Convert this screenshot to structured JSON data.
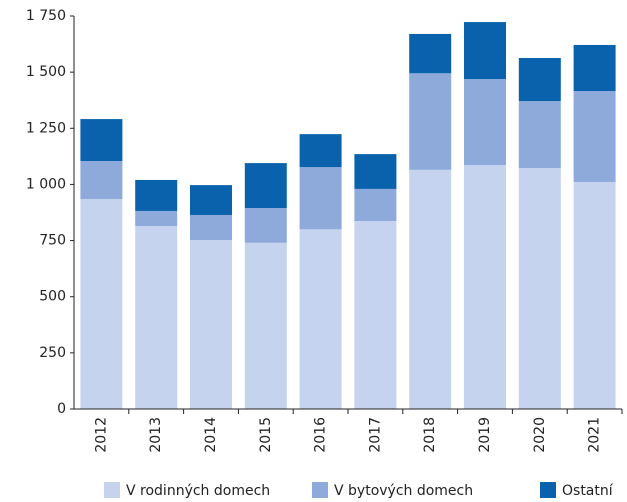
{
  "chart_data": {
    "type": "stacked_bar",
    "categories": [
      "2012",
      "2013",
      "2014",
      "2015",
      "2016",
      "2017",
      "2018",
      "2019",
      "2020",
      "2021"
    ],
    "series": [
      {
        "name": "V rodinných domech",
        "color": "#c5d3ee",
        "values": [
          935,
          815,
          752,
          740,
          800,
          837,
          1065,
          1086,
          1073,
          1011
        ]
      },
      {
        "name": "V bytových domech",
        "color": "#8eaadb",
        "values": [
          169,
          67,
          112,
          155,
          277,
          143,
          430,
          383,
          298,
          405
        ]
      },
      {
        "name": "Ostatní",
        "color": "#0a62ad",
        "values": [
          187,
          138,
          133,
          200,
          147,
          155,
          175,
          254,
          192,
          205
        ]
      }
    ],
    "ylim": [
      0,
      1750
    ],
    "yticks": [
      0,
      250,
      500,
      750,
      {
        "value": 1000,
        "label": "1 000"
      },
      {
        "value": 1250,
        "label": "1 250"
      },
      {
        "value": 1500,
        "label": "1 500"
      },
      {
        "value": 1750,
        "label": "1 750"
      }
    ],
    "legend": "bottom"
  }
}
